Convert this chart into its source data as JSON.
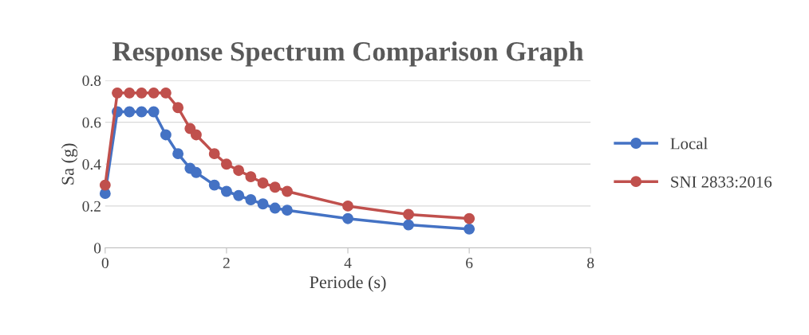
{
  "chart_data": {
    "type": "line",
    "title": "Response Spectrum Comparison Graph",
    "xlabel": "Periode (s)",
    "ylabel": "Sa (g)",
    "xlim": [
      0,
      8
    ],
    "xticks": [
      0,
      2,
      4,
      6,
      8
    ],
    "ylim": [
      0,
      0.8
    ],
    "yticks": [
      0,
      0.2,
      0.4,
      0.6,
      0.8
    ],
    "grid": "y",
    "legend": "right",
    "marker": "circle",
    "line_style": "solid",
    "series": [
      {
        "name": "Local",
        "color": "#4472c4",
        "x": [
          0,
          0.2,
          0.4,
          0.6,
          0.8,
          1.0,
          1.2,
          1.4,
          1.5,
          1.8,
          2.0,
          2.2,
          2.4,
          2.6,
          2.8,
          3.0,
          4,
          5,
          6
        ],
        "values": [
          0.26,
          0.65,
          0.65,
          0.65,
          0.65,
          0.54,
          0.45,
          0.38,
          0.36,
          0.3,
          0.27,
          0.25,
          0.23,
          0.21,
          0.19,
          0.18,
          0.14,
          0.11,
          0.09
        ]
      },
      {
        "name": "SNI 2833:2016",
        "color": "#c0504d",
        "x": [
          0,
          0.2,
          0.4,
          0.6,
          0.8,
          1.0,
          1.2,
          1.4,
          1.5,
          1.8,
          2.0,
          2.2,
          2.4,
          2.6,
          2.8,
          3.0,
          4,
          5,
          6
        ],
        "values": [
          0.3,
          0.74,
          0.74,
          0.74,
          0.74,
          0.74,
          0.67,
          0.57,
          0.54,
          0.45,
          0.4,
          0.37,
          0.34,
          0.31,
          0.29,
          0.27,
          0.2,
          0.16,
          0.14
        ]
      }
    ]
  }
}
